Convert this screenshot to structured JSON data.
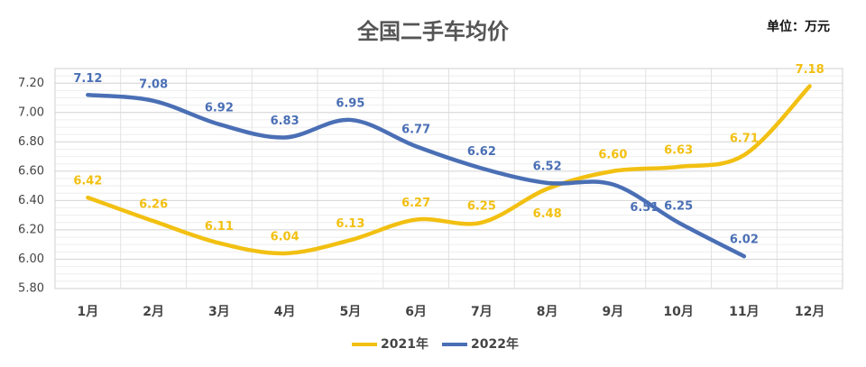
{
  "chart_data": {
    "type": "line",
    "title": "全国二手车均价",
    "unit_label": "单位：万元",
    "categories": [
      "1月",
      "2月",
      "3月",
      "4月",
      "5月",
      "6月",
      "7月",
      "8月",
      "9月",
      "10月",
      "11月",
      "12月"
    ],
    "series": [
      {
        "name": "2021年",
        "color": "#f2c012",
        "values": [
          6.42,
          6.26,
          6.11,
          6.04,
          6.13,
          6.27,
          6.25,
          6.48,
          6.6,
          6.63,
          6.71,
          7.18
        ],
        "value_labels": [
          "6.42",
          "6.26",
          "6.11",
          "6.04",
          "6.13",
          "6.27",
          "6.25",
          "6.48",
          "6.60",
          "6.63",
          "6.71",
          "7.18"
        ]
      },
      {
        "name": "2022年",
        "color": "#4a6fb5",
        "values": [
          7.12,
          7.08,
          6.92,
          6.83,
          6.95,
          6.77,
          6.62,
          6.52,
          6.51,
          6.25,
          6.02,
          null
        ],
        "value_labels": [
          "7.12",
          "7.08",
          "6.92",
          "6.83",
          "6.95",
          "6.77",
          "6.62",
          "6.52",
          "6.51",
          "6.25",
          "6.02",
          null
        ]
      }
    ],
    "ylim": [
      5.8,
      7.3
    ],
    "yticks": [
      {
        "value": 5.8,
        "label": "5.80"
      },
      {
        "value": 6.0,
        "label": "6.00"
      },
      {
        "value": 6.2,
        "label": "6.20"
      },
      {
        "value": 6.4,
        "label": "6.40"
      },
      {
        "value": 6.6,
        "label": "6.60"
      },
      {
        "value": 6.8,
        "label": "6.80"
      },
      {
        "value": 7.0,
        "label": "7.00"
      },
      {
        "value": 7.2,
        "label": "7.20"
      }
    ],
    "grid": true,
    "legend": "bottom"
  }
}
